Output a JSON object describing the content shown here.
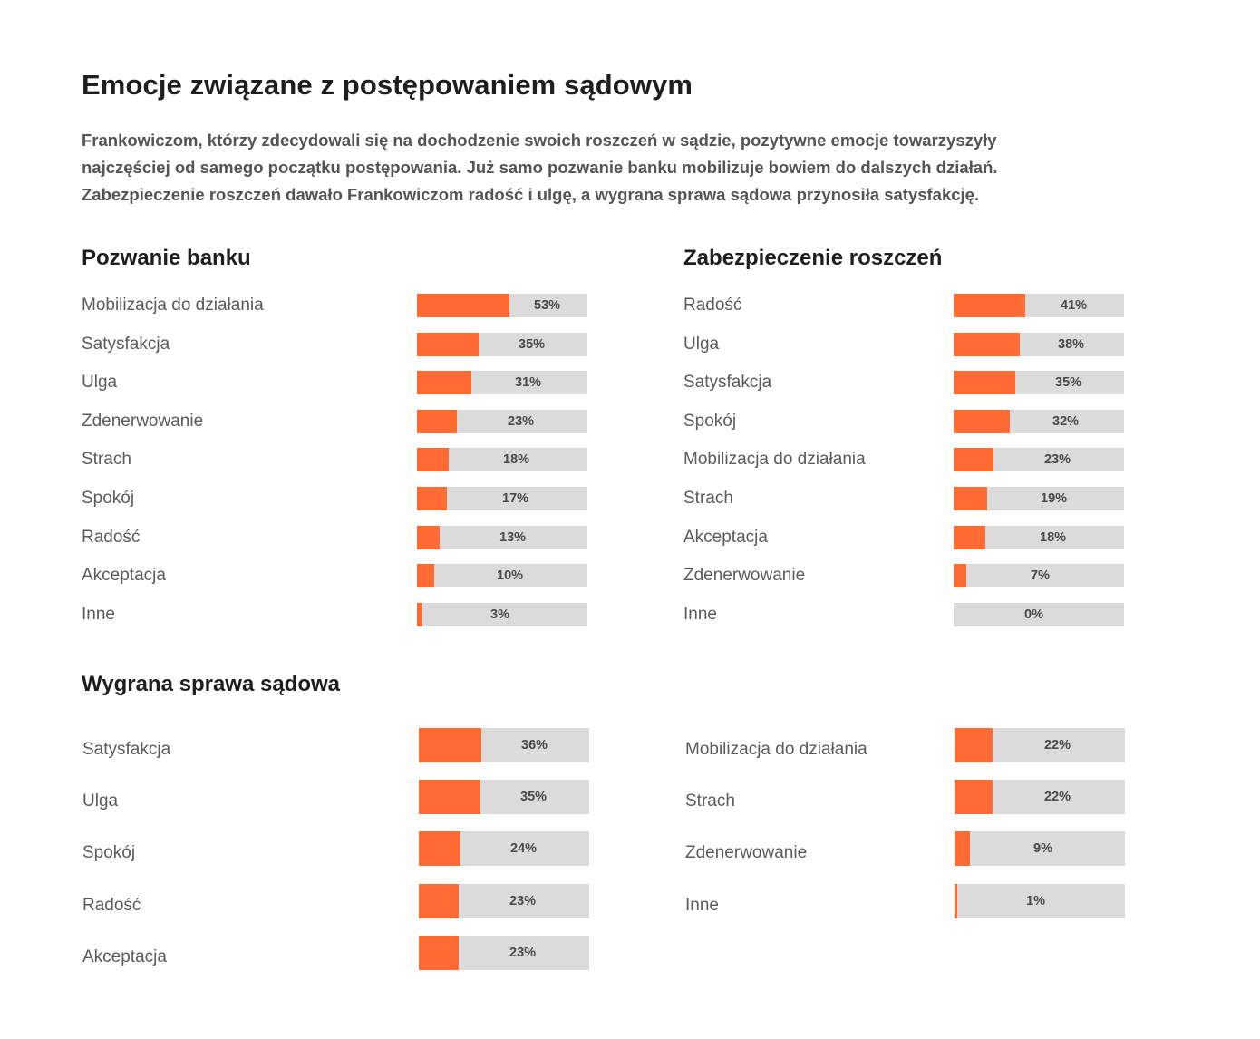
{
  "page": {
    "title": "Emocje związane z postępowaniem sądowym",
    "intro_lines": [
      "Frankowiczom, którzy zdecydowali się na dochodzenie swoich roszczeń w sądzie, pozytywne emocje towarzyszyły",
      "najczęściej od samego początku postępowania. Już samo pozwanie banku mobilizuje bowiem do dalszych działań.",
      "Zabezpieczenie roszczeń dawało Frankowiczom radość i ulgę, a wygrana sprawa sądowa przynosiła satysfakcję."
    ],
    "colors": {
      "fill": "#ff6b33",
      "track": "#dcdbdc"
    }
  },
  "chart_data": [
    {
      "type": "bar",
      "orientation": "horizontal",
      "title": "Pozwanie banku",
      "categories": [
        "Mobilizacja do działania",
        "Satysfakcja",
        "Ulga",
        "Zdenerwowanie",
        "Strach",
        "Spokój",
        "Radość",
        "Akceptacja",
        "Inne"
      ],
      "values": [
        53,
        35,
        31,
        23,
        18,
        17,
        13,
        10,
        3
      ],
      "value_labels": [
        "53%",
        "35%",
        "31%",
        "23%",
        "18%",
        "17%",
        "13%",
        "10%",
        "3%"
      ],
      "xlim": [
        0,
        100
      ],
      "unit": "%"
    },
    {
      "type": "bar",
      "orientation": "horizontal",
      "title": "Zabezpieczenie roszczeń",
      "categories": [
        "Radość",
        "Ulga",
        "Satysfakcja",
        "Spokój",
        "Mobilizacja do działania",
        "Strach",
        "Akceptacja",
        "Zdenerwowanie",
        "Inne"
      ],
      "values": [
        41,
        38,
        35,
        32,
        23,
        19,
        18,
        7,
        0
      ],
      "value_labels": [
        "41%",
        "38%",
        "35%",
        "32%",
        "23%",
        "19%",
        "18%",
        "7%",
        "0%"
      ],
      "xlim": [
        0,
        100
      ],
      "unit": "%"
    },
    {
      "type": "bar",
      "orientation": "horizontal",
      "title": "Wygrana sprawa sądowa",
      "categories": [
        "Satysfakcja",
        "Ulga",
        "Spokój",
        "Radość",
        "Akceptacja",
        "Mobilizacja do działania",
        "Strach",
        "Zdenerwowanie",
        "Inne"
      ],
      "values": [
        36,
        35,
        24,
        23,
        23,
        22,
        22,
        9,
        1
      ],
      "value_labels": [
        "36%",
        "35%",
        "24%",
        "23%",
        "23%",
        "22%",
        "22%",
        "9%",
        "1%"
      ],
      "xlim": [
        0,
        100
      ],
      "unit": "%"
    }
  ]
}
